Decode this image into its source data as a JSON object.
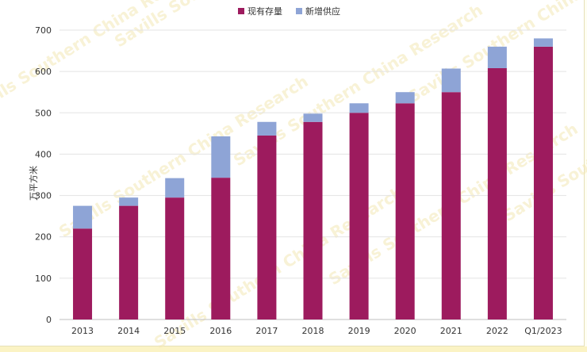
{
  "watermark": "Savills Southern China Research",
  "chart_data": {
    "type": "bar",
    "stacked": true,
    "categories": [
      "2013",
      "2014",
      "2015",
      "2016",
      "2017",
      "2018",
      "2019",
      "2020",
      "2021",
      "2022",
      "Q1/2023"
    ],
    "series": [
      {
        "name": "现有存量",
        "color": "#9d1b5e",
        "values": [
          220,
          275,
          295,
          343,
          445,
          478,
          500,
          523,
          550,
          608,
          660
        ]
      },
      {
        "name": "新增供应",
        "color": "#8ea4d6",
        "values": [
          55,
          20,
          47,
          100,
          33,
          20,
          23,
          27,
          57,
          52,
          20
        ]
      }
    ],
    "ylabel": "万平方米",
    "ylim": [
      0,
      700
    ],
    "yticks": [
      0,
      100,
      200,
      300,
      400,
      500,
      600,
      700
    ],
    "grid": true,
    "legend_position": "top-center"
  }
}
